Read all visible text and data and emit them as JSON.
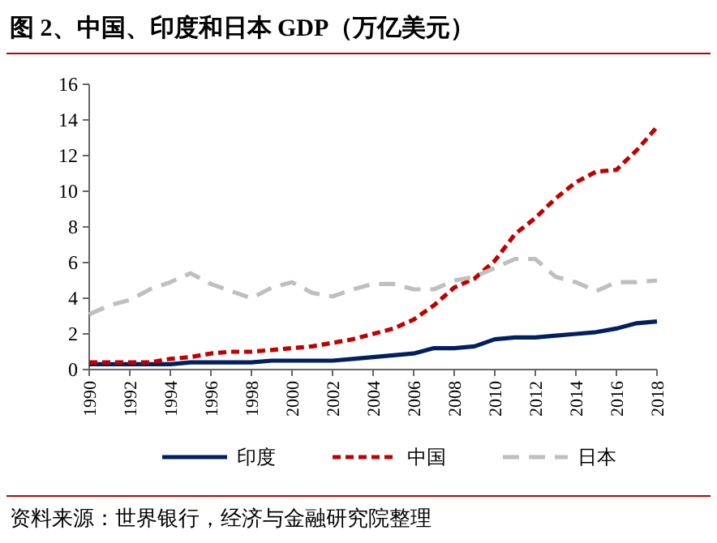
{
  "chart_data": {
    "type": "line",
    "title": "图 2、中国、印度和日本 GDP（万亿美元）",
    "annotations": [
      "资料来源：世界银行，经济与金融研究院整理"
    ],
    "x": [
      1990,
      1991,
      1992,
      1993,
      1994,
      1995,
      1996,
      1997,
      1998,
      1999,
      2000,
      2001,
      2002,
      2003,
      2004,
      2005,
      2006,
      2007,
      2008,
      2009,
      2010,
      2011,
      2012,
      2013,
      2014,
      2015,
      2016,
      2017,
      2018
    ],
    "series": [
      {
        "name": "印度",
        "color": "#002060",
        "line_style": "solid",
        "values": [
          0.3,
          0.3,
          0.3,
          0.3,
          0.3,
          0.4,
          0.4,
          0.4,
          0.4,
          0.5,
          0.5,
          0.5,
          0.5,
          0.6,
          0.7,
          0.8,
          0.9,
          1.2,
          1.2,
          1.3,
          1.7,
          1.8,
          1.8,
          1.9,
          2.0,
          2.1,
          2.3,
          2.6,
          2.7
        ]
      },
      {
        "name": "中国",
        "color": "#c00000",
        "line_style": "dashed",
        "values": [
          0.4,
          0.4,
          0.4,
          0.4,
          0.6,
          0.7,
          0.9,
          1.0,
          1.0,
          1.1,
          1.2,
          1.3,
          1.5,
          1.7,
          2.0,
          2.3,
          2.8,
          3.6,
          4.6,
          5.1,
          6.1,
          7.6,
          8.5,
          9.6,
          10.5,
          11.1,
          11.2,
          12.3,
          13.6
        ]
      },
      {
        "name": "日本",
        "color": "#bfbfbf",
        "line_style": "longdash",
        "values": [
          3.1,
          3.6,
          3.9,
          4.5,
          4.9,
          5.4,
          4.8,
          4.4,
          4.0,
          4.6,
          4.9,
          4.3,
          4.1,
          4.5,
          4.8,
          4.8,
          4.5,
          4.5,
          5.0,
          5.2,
          5.7,
          6.2,
          6.2,
          5.2,
          4.9,
          4.4,
          4.9,
          4.9,
          5.0
        ]
      }
    ],
    "xlim": [
      1990,
      2018
    ],
    "xticks": [
      1990,
      1992,
      1994,
      1996,
      1998,
      2000,
      2002,
      2004,
      2006,
      2008,
      2010,
      2012,
      2014,
      2016,
      2018
    ],
    "ylim": [
      0,
      16
    ],
    "yticks": [
      0,
      2,
      4,
      6,
      8,
      10,
      12,
      14,
      16
    ],
    "grid": false,
    "legend": "bottom",
    "marker": "none"
  }
}
